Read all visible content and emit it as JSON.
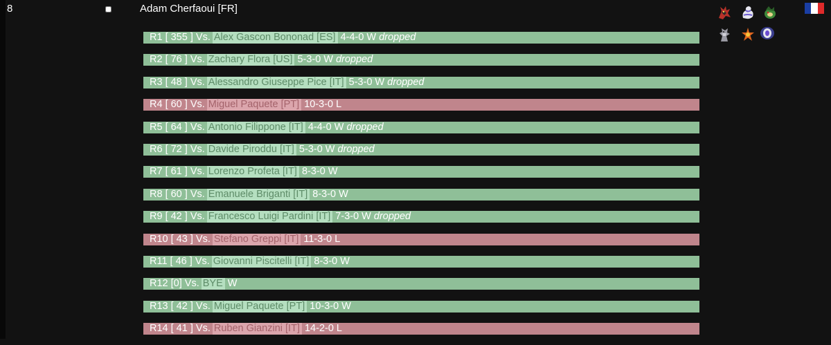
{
  "player": {
    "rank": "8",
    "name": "Adam Cherfaoui [FR]",
    "flag": {
      "country": "FR",
      "colors": [
        "#1a3ea3",
        "#ffffff",
        "#e02a2a"
      ]
    },
    "team_icons": [
      "pokemon-sprite-1",
      "pokemon-sprite-2",
      "pokemon-sprite-3",
      "pokemon-sprite-4",
      "pokemon-sprite-5",
      "pokemon-sprite-6"
    ]
  },
  "colors": {
    "win": "#8fbf98",
    "loss": "#c0858c"
  },
  "rounds": [
    {
      "label": "R1 [ 355 ] Vs.",
      "opponent": "Alex Gascon Bononad [ES]",
      "score": "4-4-0 W",
      "dropped": "dropped",
      "result": "win"
    },
    {
      "label": "R2 [ 76 ] Vs.",
      "opponent": "Zachary Flora [US]",
      "score": "5-3-0 W",
      "dropped": "dropped",
      "result": "win"
    },
    {
      "label": "R3 [ 48 ] Vs.",
      "opponent": "Alessandro Giuseppe Pice [IT]",
      "score": "5-3-0 W",
      "dropped": "dropped",
      "result": "win"
    },
    {
      "label": "R4 [ 60 ] Vs.",
      "opponent": "Miguel Paquete [PT]",
      "score": "10-3-0 L",
      "dropped": "",
      "result": "loss"
    },
    {
      "label": "R5 [ 64 ] Vs.",
      "opponent": "Antonio Filippone [IT]",
      "score": "4-4-0 W",
      "dropped": "dropped",
      "result": "win"
    },
    {
      "label": "R6 [ 72 ] Vs.",
      "opponent": "Davide Piroddu [IT]",
      "score": "5-3-0 W",
      "dropped": "dropped",
      "result": "win"
    },
    {
      "label": "R7 [ 61 ] Vs.",
      "opponent": "Lorenzo Profeta [IT]",
      "score": "8-3-0 W",
      "dropped": "",
      "result": "win"
    },
    {
      "label": "R8 [ 60 ] Vs.",
      "opponent": "Emanuele Briganti [IT]",
      "score": "8-3-0 W",
      "dropped": "",
      "result": "win"
    },
    {
      "label": "R9 [ 42 ] Vs.",
      "opponent": "Francesco Luigi Pardini [IT]",
      "score": "7-3-0 W",
      "dropped": "dropped",
      "result": "win"
    },
    {
      "label": "R10 [ 43 ] Vs.",
      "opponent": "Stefano Greppi [IT]",
      "score": "11-3-0 L",
      "dropped": "",
      "result": "loss"
    },
    {
      "label": "R11 [ 46 ] Vs.",
      "opponent": "Giovanni Piscitelli [IT]",
      "score": "8-3-0 W",
      "dropped": "",
      "result": "win"
    },
    {
      "label": "R12 [0] Vs.",
      "opponent": "BYE",
      "score": "W",
      "dropped": "",
      "result": "win"
    },
    {
      "label": "R13 [ 42 ] Vs.",
      "opponent": "Miguel Paquete [PT]",
      "score": "10-3-0 W",
      "dropped": "",
      "result": "win"
    },
    {
      "label": "R14 [ 41 ] Vs.",
      "opponent": "Ruben Gianzini [IT]",
      "score": "14-2-0 L",
      "dropped": "",
      "result": "loss"
    }
  ]
}
